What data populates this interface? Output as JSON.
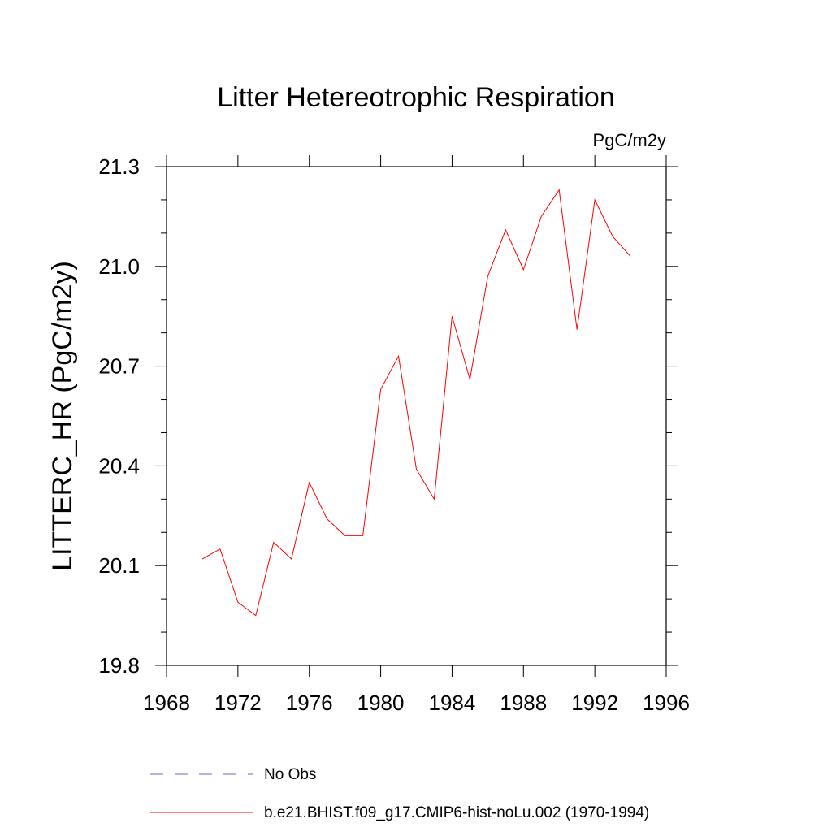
{
  "chart_data": {
    "type": "line",
    "title": "Litter Hetereotrophic Respiration",
    "units": "PgC/m2y",
    "xlabel": "",
    "ylabel": "LITTERC_HR  (PgC/m2y)",
    "xlim": [
      1968,
      1996
    ],
    "ylim": [
      19.8,
      21.3
    ],
    "xticks": [
      1968,
      1972,
      1976,
      1980,
      1984,
      1988,
      1992,
      1996
    ],
    "xtick_labels": [
      "1968",
      "1972",
      "1976",
      "1980",
      "1984",
      "1988",
      "1992",
      "1996"
    ],
    "yticks": [
      19.8,
      20.1,
      20.4,
      20.7,
      21.0,
      21.3
    ],
    "ytick_labels": [
      "19.8",
      "20.1",
      "20.4",
      "20.7",
      "21.0",
      "21.3"
    ],
    "grid": false,
    "legend_position": "bottom",
    "series": [
      {
        "name": "No Obs",
        "color": "#6a6ac8",
        "style": "dashed",
        "x": [],
        "values": []
      },
      {
        "name": "b.e21.BHIST.f09_g17.CMIP6-hist-noLu.002 (1970-1994)",
        "color": "#ff0000",
        "style": "solid",
        "x": [
          1970,
          1971,
          1972,
          1973,
          1974,
          1975,
          1976,
          1977,
          1978,
          1979,
          1980,
          1981,
          1982,
          1983,
          1984,
          1985,
          1986,
          1987,
          1988,
          1989,
          1990,
          1991,
          1992,
          1993,
          1994
        ],
        "values": [
          20.12,
          20.15,
          19.99,
          19.95,
          20.17,
          20.12,
          20.35,
          20.24,
          20.19,
          20.19,
          20.63,
          20.73,
          20.39,
          20.3,
          20.85,
          20.66,
          20.97,
          21.11,
          20.99,
          21.15,
          21.23,
          20.81,
          21.2,
          21.09,
          21.03
        ]
      }
    ]
  }
}
